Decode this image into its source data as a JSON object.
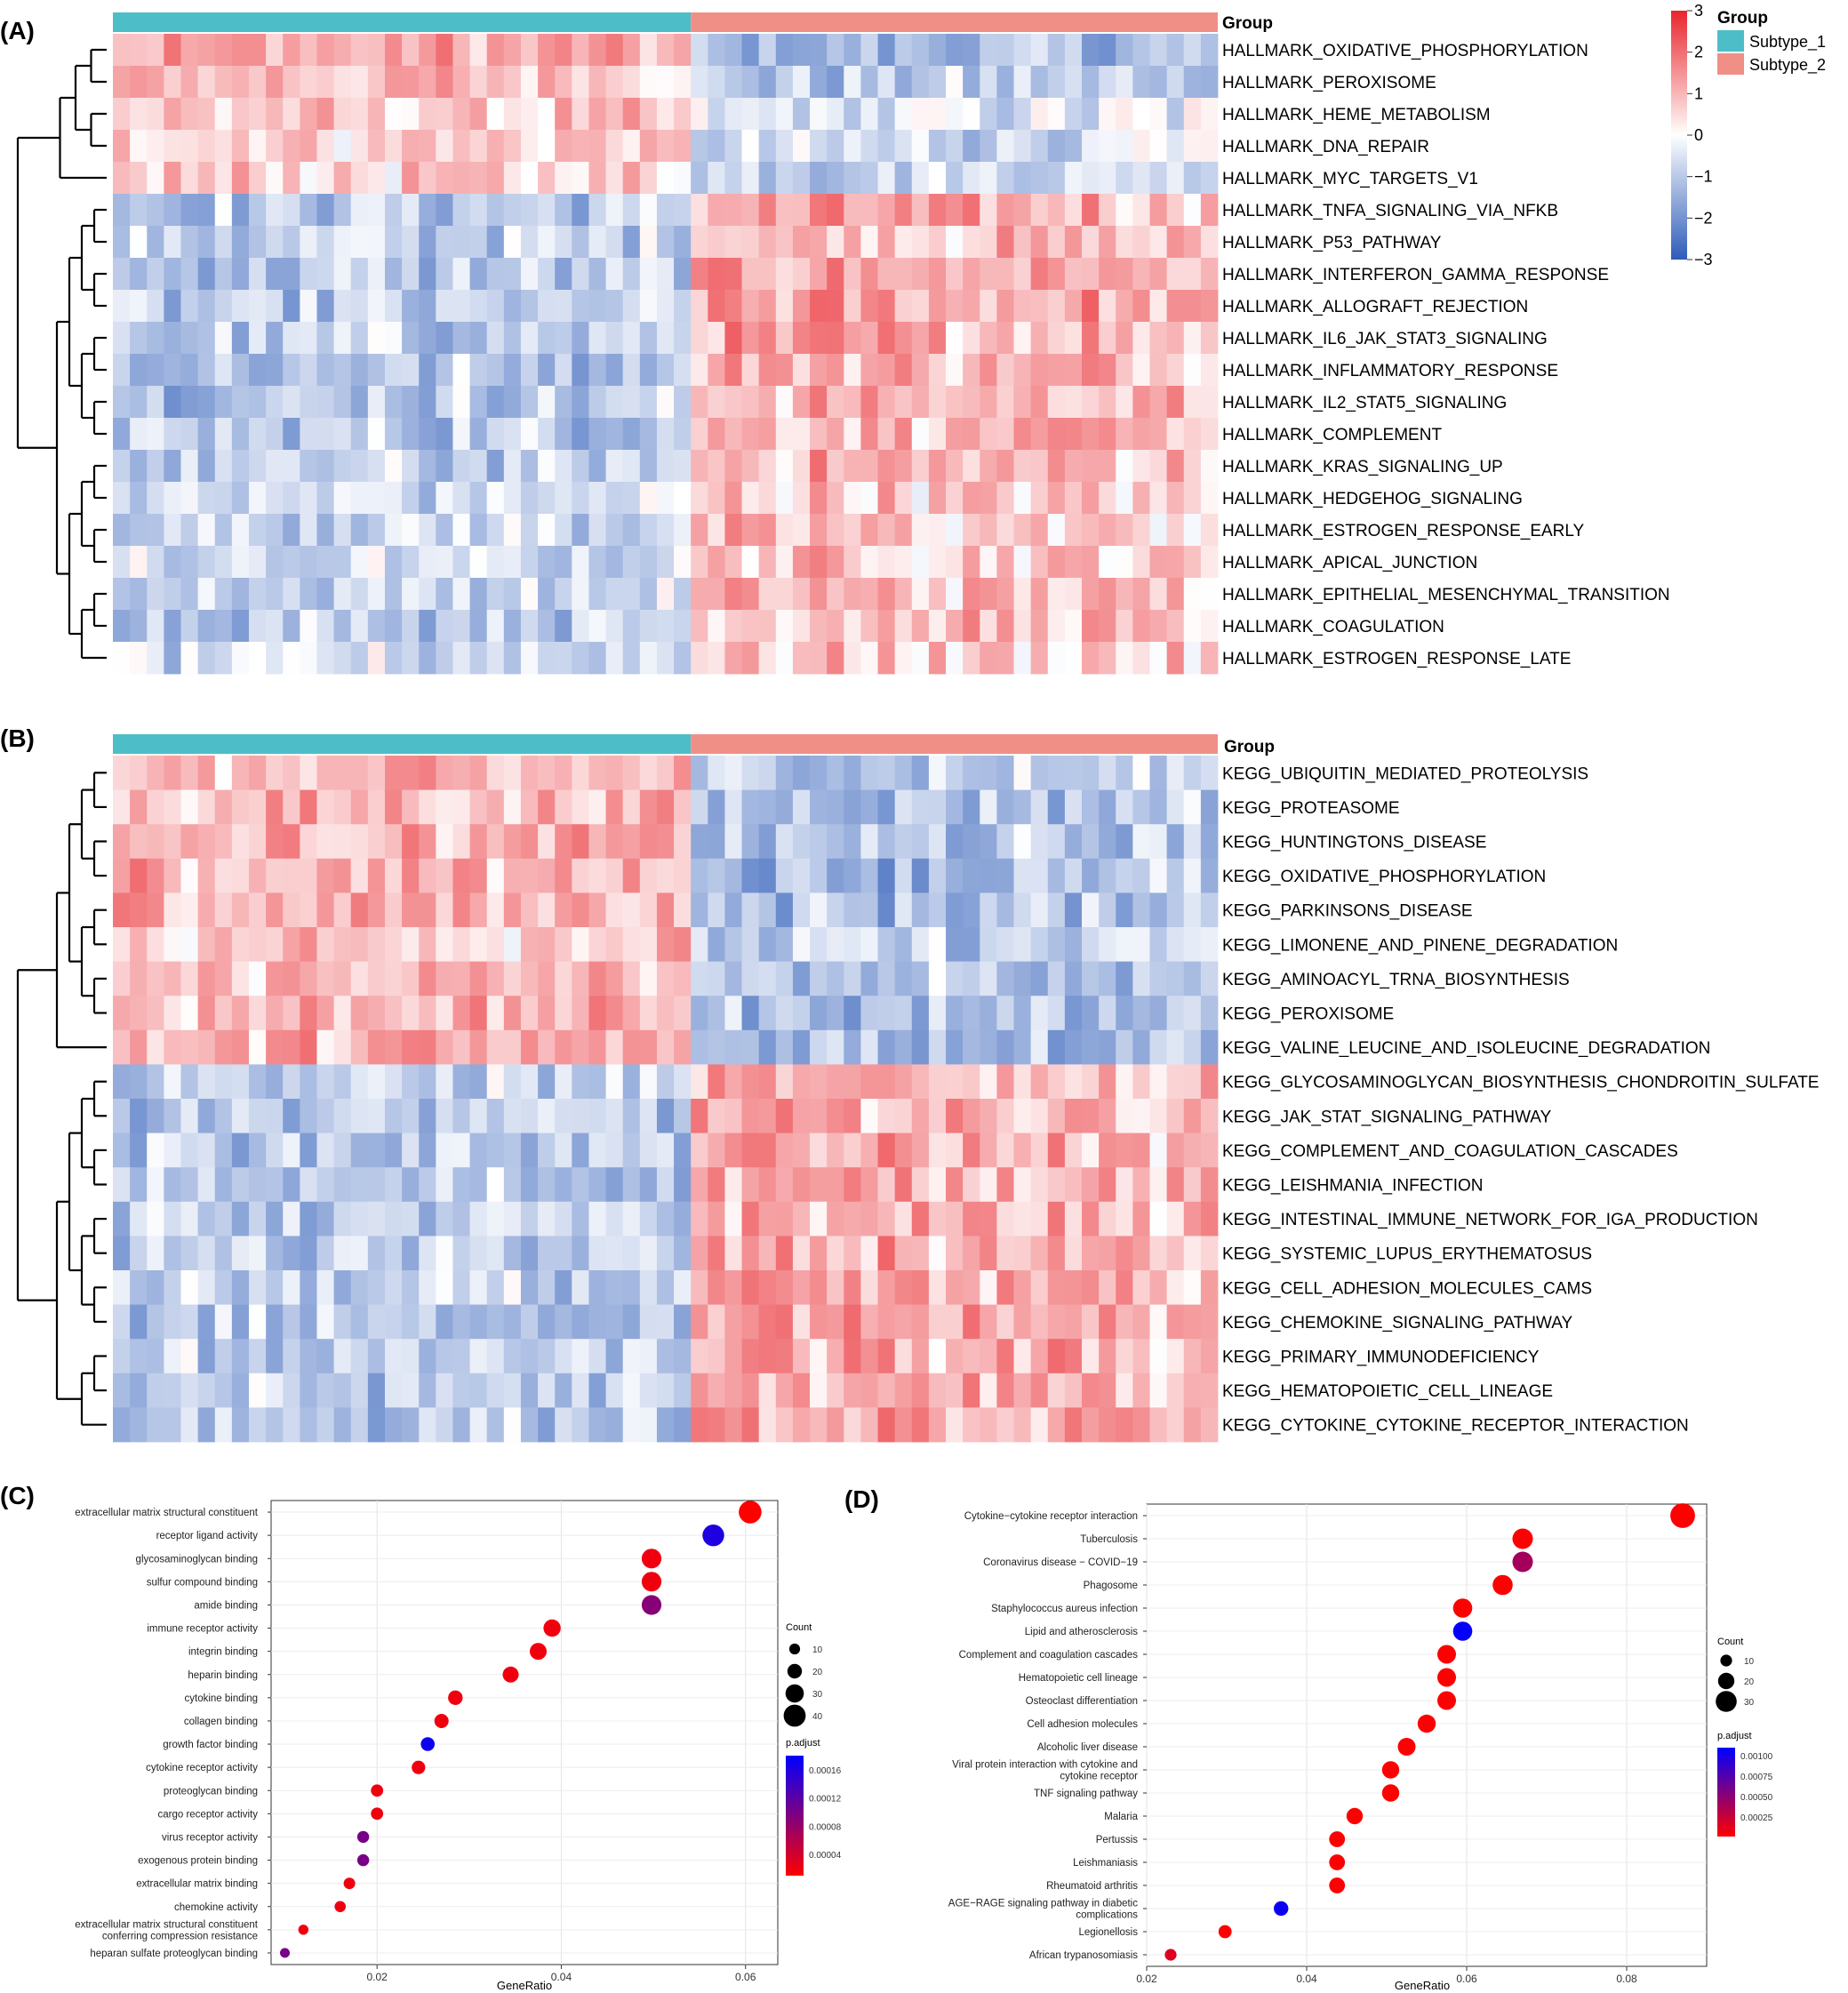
{
  "colors": {
    "subtype_1": "#4DBEC7",
    "subtype_2": "#F08F86",
    "heat_low": "#2E5CB8",
    "heat_mid": "#FFFFFF",
    "heat_high": "#E8262C",
    "padj_low": "#FF0000",
    "padj_high": "#0000FF"
  },
  "panel_labels": [
    "(A)",
    "(B)",
    "(C)",
    "(D)"
  ],
  "legend": {
    "group_title": "Group",
    "subtype_1_label": "Subtype_1",
    "subtype_2_label": "Subtype_2",
    "scale_ticks": [
      "3",
      "2",
      "1",
      "0",
      "−1",
      "−2",
      "−3"
    ]
  },
  "chart_data": [
    {
      "panel": "(A)",
      "type": "heatmap",
      "annotation_label": "Group",
      "groups": [
        {
          "name": "Subtype_1",
          "columns": 34
        },
        {
          "name": "Subtype_2",
          "columns": 31
        }
      ],
      "value_range": [
        -3,
        3
      ],
      "rows": [
        {
          "name": "HALLMARK_OXIDATIVE_PHOSPHORYLATION",
          "subtype_1_mean": 1.1,
          "subtype_2_mean": -1.3
        },
        {
          "name": "HALLMARK_PEROXISOME",
          "subtype_1_mean": 0.9,
          "subtype_2_mean": -1.0
        },
        {
          "name": "HALLMARK_HEME_METABOLISM",
          "subtype_1_mean": 0.6,
          "subtype_2_mean": -0.5
        },
        {
          "name": "HALLMARK_DNA_REPAIR",
          "subtype_1_mean": 0.7,
          "subtype_2_mean": -0.7
        },
        {
          "name": "HALLMARK_MYC_TARGETS_V1",
          "subtype_1_mean": 0.6,
          "subtype_2_mean": -0.6
        },
        {
          "name": "HALLMARK_TNFA_SIGNALING_VIA_NFKB",
          "subtype_1_mean": -0.9,
          "subtype_2_mean": 1.1
        },
        {
          "name": "HALLMARK_P53_PATHWAY",
          "subtype_1_mean": -0.8,
          "subtype_2_mean": 0.9
        },
        {
          "name": "HALLMARK_INTERFERON_GAMMA_RESPONSE",
          "subtype_1_mean": -1.0,
          "subtype_2_mean": 1.2
        },
        {
          "name": "HALLMARK_ALLOGRAFT_REJECTION",
          "subtype_1_mean": -1.0,
          "subtype_2_mean": 1.2
        },
        {
          "name": "HALLMARK_IL6_JAK_STAT3_SIGNALING",
          "subtype_1_mean": -0.9,
          "subtype_2_mean": 1.1
        },
        {
          "name": "HALLMARK_INFLAMMATORY_RESPONSE",
          "subtype_1_mean": -1.0,
          "subtype_2_mean": 1.1
        },
        {
          "name": "HALLMARK_IL2_STAT5_SIGNALING",
          "subtype_1_mean": -0.9,
          "subtype_2_mean": 1.0
        },
        {
          "name": "HALLMARK_COMPLEMENT",
          "subtype_1_mean": -0.9,
          "subtype_2_mean": 1.0
        },
        {
          "name": "HALLMARK_KRAS_SIGNALING_UP",
          "subtype_1_mean": -0.9,
          "subtype_2_mean": 1.0
        },
        {
          "name": "HALLMARK_HEDGEHOG_SIGNALING",
          "subtype_1_mean": -0.6,
          "subtype_2_mean": 0.7
        },
        {
          "name": "HALLMARK_ESTROGEN_RESPONSE_EARLY",
          "subtype_1_mean": -0.6,
          "subtype_2_mean": 0.7
        },
        {
          "name": "HALLMARK_APICAL_JUNCTION",
          "subtype_1_mean": -0.7,
          "subtype_2_mean": 0.8
        },
        {
          "name": "HALLMARK_EPITHELIAL_MESENCHYMAL_TRANSITION",
          "subtype_1_mean": -0.7,
          "subtype_2_mean": 0.9
        },
        {
          "name": "HALLMARK_COAGULATION",
          "subtype_1_mean": -0.8,
          "subtype_2_mean": 0.9
        },
        {
          "name": "HALLMARK_ESTROGEN_RESPONSE_LATE",
          "subtype_1_mean": -0.6,
          "subtype_2_mean": 0.7
        }
      ]
    },
    {
      "panel": "(B)",
      "type": "heatmap",
      "annotation_label": "Group",
      "groups": [
        {
          "name": "Subtype_1",
          "columns": 34
        },
        {
          "name": "Subtype_2",
          "columns": 31
        }
      ],
      "value_range": [
        -3,
        3
      ],
      "rows": [
        {
          "name": "KEGG_UBIQUITIN_MEDIATED_PROTEOLYSIS",
          "subtype_1_mean": 0.8,
          "subtype_2_mean": -0.9
        },
        {
          "name": "KEGG_PROTEASOME",
          "subtype_1_mean": 0.9,
          "subtype_2_mean": -1.0
        },
        {
          "name": "KEGG_HUNTINGTONS_DISEASE",
          "subtype_1_mean": 1.0,
          "subtype_2_mean": -1.1
        },
        {
          "name": "KEGG_OXIDATIVE_PHOSPHORYLATION",
          "subtype_1_mean": 1.0,
          "subtype_2_mean": -1.2
        },
        {
          "name": "KEGG_PARKINSONS_DISEASE",
          "subtype_1_mean": 1.0,
          "subtype_2_mean": -1.1
        },
        {
          "name": "KEGG_LIMONENE_AND_PINENE_DEGRADATION",
          "subtype_1_mean": 0.8,
          "subtype_2_mean": -0.9
        },
        {
          "name": "KEGG_AMINOACYL_TRNA_BIOSYNTHESIS",
          "subtype_1_mean": 0.9,
          "subtype_2_mean": -1.1
        },
        {
          "name": "KEGG_PEROXISOME",
          "subtype_1_mean": 1.0,
          "subtype_2_mean": -1.1
        },
        {
          "name": "KEGG_VALINE_LEUCINE_AND_ISOLEUCINE_DEGRADATION",
          "subtype_1_mean": 1.0,
          "subtype_2_mean": -1.1
        },
        {
          "name": "KEGG_GLYCOSAMINOGLYCAN_BIOSYNTHESIS_CHONDROITIN_SULFATE",
          "subtype_1_mean": -0.8,
          "subtype_2_mean": 0.9
        },
        {
          "name": "KEGG_JAK_STAT_SIGNALING_PATHWAY",
          "subtype_1_mean": -0.9,
          "subtype_2_mean": 1.0
        },
        {
          "name": "KEGG_COMPLEMENT_AND_COAGULATION_CASCADES",
          "subtype_1_mean": -0.9,
          "subtype_2_mean": 1.0
        },
        {
          "name": "KEGG_LEISHMANIA_INFECTION",
          "subtype_1_mean": -1.0,
          "subtype_2_mean": 1.1
        },
        {
          "name": "KEGG_INTESTINAL_IMMUNE_NETWORK_FOR_IGA_PRODUCTION",
          "subtype_1_mean": -0.9,
          "subtype_2_mean": 1.0
        },
        {
          "name": "KEGG_SYSTEMIC_LUPUS_ERYTHEMATOSUS",
          "subtype_1_mean": -0.9,
          "subtype_2_mean": 1.0
        },
        {
          "name": "KEGG_CELL_ADHESION_MOLECULES_CAMS",
          "subtype_1_mean": -0.9,
          "subtype_2_mean": 1.0
        },
        {
          "name": "KEGG_CHEMOKINE_SIGNALING_PATHWAY",
          "subtype_1_mean": -1.0,
          "subtype_2_mean": 1.1
        },
        {
          "name": "KEGG_PRIMARY_IMMUNODEFICIENCY",
          "subtype_1_mean": -0.9,
          "subtype_2_mean": 1.0
        },
        {
          "name": "KEGG_HEMATOPOIETIC_CELL_LINEAGE",
          "subtype_1_mean": -0.9,
          "subtype_2_mean": 1.0
        },
        {
          "name": "KEGG_CYTOKINE_CYTOKINE_RECEPTOR_INTERACTION",
          "subtype_1_mean": -0.9,
          "subtype_2_mean": 1.0
        }
      ]
    },
    {
      "panel": "(C)",
      "type": "scatter",
      "xlabel": "GeneRatio",
      "xlim": [
        0.0085,
        0.0635
      ],
      "xticks": [
        "0.02",
        "0.04",
        "0.06"
      ],
      "xtick_values": [
        0.02,
        0.04,
        0.06
      ],
      "size_legend_title": "Count",
      "size_ticks": [
        10,
        20,
        30,
        40
      ],
      "color_legend_title": "p.adjust",
      "color_ticks": [
        "0.00016",
        "0.00012",
        "0.00008",
        "0.00004"
      ],
      "color_tick_values": [
        0.00016,
        0.00012,
        8e-05,
        4e-05
      ],
      "color_range": [
        1e-05,
        0.00018
      ],
      "points": [
        {
          "label": "extracellular matrix structural constituent",
          "x": 0.0605,
          "count": 42,
          "padj": 1e-05
        },
        {
          "label": "receptor ligand activity",
          "x": 0.0565,
          "count": 39,
          "padj": 0.00016
        },
        {
          "label": "glycosaminoglycan binding",
          "x": 0.0498,
          "count": 34,
          "padj": 2e-05
        },
        {
          "label": "sulfur compound binding",
          "x": 0.0498,
          "count": 34,
          "padj": 2e-05
        },
        {
          "label": "amide binding",
          "x": 0.0498,
          "count": 34,
          "padj": 9e-05
        },
        {
          "label": "immune receptor activity",
          "x": 0.039,
          "count": 27,
          "padj": 2e-05
        },
        {
          "label": "integrin binding",
          "x": 0.0375,
          "count": 26,
          "padj": 2e-05
        },
        {
          "label": "heparin binding",
          "x": 0.0345,
          "count": 24,
          "padj": 2e-05
        },
        {
          "label": "cytokine binding",
          "x": 0.0285,
          "count": 20,
          "padj": 2e-05
        },
        {
          "label": "collagen binding",
          "x": 0.027,
          "count": 19,
          "padj": 2e-05
        },
        {
          "label": "growth factor binding",
          "x": 0.0255,
          "count": 18,
          "padj": 0.00017
        },
        {
          "label": "cytokine receptor activity",
          "x": 0.0245,
          "count": 17,
          "padj": 2e-05
        },
        {
          "label": "proteoglycan binding",
          "x": 0.02,
          "count": 14,
          "padj": 2e-05
        },
        {
          "label": "cargo receptor activity",
          "x": 0.02,
          "count": 14,
          "padj": 2e-05
        },
        {
          "label": "virus receptor activity",
          "x": 0.0185,
          "count": 13,
          "padj": 0.0001
        },
        {
          "label": "exogenous protein binding",
          "x": 0.0185,
          "count": 13,
          "padj": 0.0001
        },
        {
          "label": "extracellular matrix binding",
          "x": 0.017,
          "count": 12,
          "padj": 2e-05
        },
        {
          "label": "chemokine activity",
          "x": 0.016,
          "count": 11,
          "padj": 2e-05
        },
        {
          "label": "extracellular matrix structural constituent\nconferring compression resistance",
          "x": 0.012,
          "count": 8,
          "padj": 2e-05
        },
        {
          "label": "heparan sulfate proteoglycan binding",
          "x": 0.01,
          "count": 7,
          "padj": 0.0001
        }
      ]
    },
    {
      "panel": "(D)",
      "type": "scatter",
      "xlabel": "GeneRatio",
      "xlim": [
        0.02,
        0.09
      ],
      "xticks": [
        "0.02",
        "0.04",
        "0.06",
        "0.08"
      ],
      "xtick_values": [
        0.02,
        0.04,
        0.06,
        0.08
      ],
      "size_legend_title": "Count",
      "size_ticks": [
        10,
        20,
        30
      ],
      "color_legend_title": "p.adjust",
      "color_ticks": [
        "0.00100",
        "0.00075",
        "0.00050",
        "0.00025"
      ],
      "color_tick_values": [
        0.001,
        0.00075,
        0.0005,
        0.00025
      ],
      "color_range": [
        1e-05,
        0.0011
      ],
      "points": [
        {
          "label": "Cytokine−cytokine receptor interaction",
          "x": 0.087,
          "count": 38,
          "padj": 1e-05
        },
        {
          "label": "Tuberculosis",
          "x": 0.067,
          "count": 29,
          "padj": 2e-05
        },
        {
          "label": "Coronavirus disease − COVID−19",
          "x": 0.067,
          "count": 29,
          "padj": 0.0004
        },
        {
          "label": "Phagosome",
          "x": 0.0645,
          "count": 28,
          "padj": 2e-05
        },
        {
          "label": "Staphylococcus aureus infection",
          "x": 0.0595,
          "count": 26,
          "padj": 2e-05
        },
        {
          "label": "Lipid and atherosclerosis",
          "x": 0.0595,
          "count": 26,
          "padj": 0.00108
        },
        {
          "label": "Complement and coagulation cascades",
          "x": 0.0575,
          "count": 25,
          "padj": 2e-05
        },
        {
          "label": "Hematopoietic cell lineage",
          "x": 0.0575,
          "count": 25,
          "padj": 2e-05
        },
        {
          "label": "Osteoclast differentiation",
          "x": 0.0575,
          "count": 25,
          "padj": 2e-05
        },
        {
          "label": "Cell adhesion molecules",
          "x": 0.055,
          "count": 24,
          "padj": 2e-05
        },
        {
          "label": "Alcoholic liver disease",
          "x": 0.0525,
          "count": 23,
          "padj": 2e-05
        },
        {
          "label": "Viral protein interaction with cytokine and\ncytokine receptor",
          "x": 0.0505,
          "count": 22,
          "padj": 2e-05
        },
        {
          "label": "TNF signaling pathway",
          "x": 0.0505,
          "count": 22,
          "padj": 2e-05
        },
        {
          "label": "Malaria",
          "x": 0.046,
          "count": 20,
          "padj": 2e-05
        },
        {
          "label": "Pertussis",
          "x": 0.0438,
          "count": 19,
          "padj": 2e-05
        },
        {
          "label": "Leishmaniasis",
          "x": 0.0438,
          "count": 19,
          "padj": 2e-05
        },
        {
          "label": "Rheumatoid arthritis",
          "x": 0.0438,
          "count": 19,
          "padj": 2e-05
        },
        {
          "label": "AGE−RAGE signaling pathway in diabetic\ncomplications",
          "x": 0.0368,
          "count": 16,
          "padj": 0.00105
        },
        {
          "label": "Legionellosis",
          "x": 0.0298,
          "count": 13,
          "padj": 2e-05
        },
        {
          "label": "African trypanosomiasis",
          "x": 0.023,
          "count": 10,
          "padj": 0.00015
        }
      ]
    }
  ]
}
